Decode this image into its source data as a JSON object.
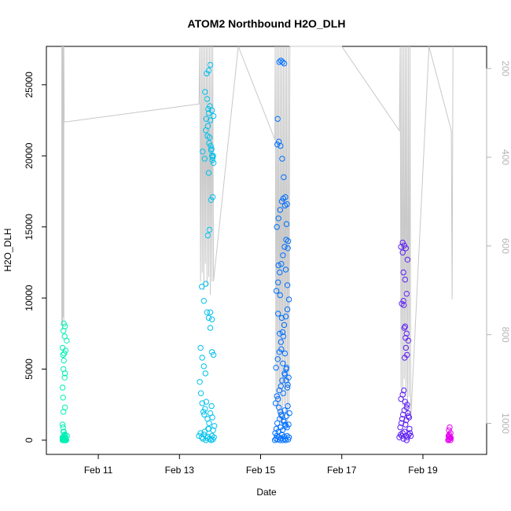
{
  "chart_data": {
    "type": "scatter",
    "title": "ATOM2 Northbound H2O_DLH",
    "xlabel": "Date",
    "ylabel": "H2O_DLH",
    "x_unit": "days in February (day-of-month, fractional)",
    "xlim": [
      9.72,
      20.57
    ],
    "ylim": [
      -1000,
      27700
    ],
    "y2lim": [
      1070,
      150
    ],
    "y2_reversed": true,
    "y2_color": "#b3b3b3",
    "x_ticks": [
      {
        "value": 11,
        "label": "Feb 11"
      },
      {
        "value": 13,
        "label": "Feb 13"
      },
      {
        "value": 15,
        "label": "Feb 15"
      },
      {
        "value": 17,
        "label": "Feb 17"
      },
      {
        "value": 19,
        "label": "Feb 19"
      }
    ],
    "y_ticks": [
      0,
      5000,
      10000,
      15000,
      20000,
      25000
    ],
    "y2_ticks": [
      200,
      400,
      600,
      800,
      1000
    ],
    "grid": false,
    "legend": "none",
    "groups": [
      {
        "color": "#00f0b4",
        "x": [
          10.12,
          10.14,
          10.15,
          10.13,
          10.16,
          10.12,
          10.17,
          10.14,
          10.18,
          10.15,
          10.13,
          10.19,
          10.16,
          10.12,
          10.2,
          10.17,
          10.14,
          10.18,
          10.15,
          10.13,
          10.19,
          10.16,
          10.12,
          10.21,
          10.17,
          10.14,
          10.18,
          10.15,
          10.13,
          10.19,
          10.16,
          10.12,
          10.22,
          10.17,
          10.14,
          10.18,
          10.15,
          10.13,
          10.2,
          10.16,
          10.12,
          10.17,
          10.14,
          10.18,
          10.15,
          10.13,
          10.19,
          10.16,
          10.23
        ],
        "y": [
          0,
          50,
          0,
          80,
          120,
          200,
          0,
          0,
          350,
          600,
          900,
          0,
          150,
          1100,
          0,
          0,
          2000,
          2300,
          300,
          3000,
          0,
          0,
          3700,
          0,
          4400,
          5000,
          4700,
          5600,
          6000,
          6300,
          6100,
          6500,
          7000,
          7300,
          7700,
          8000,
          8200,
          0,
          0,
          0,
          100,
          400,
          600,
          0,
          0,
          0,
          200,
          0,
          300
        ]
      },
      {
        "color": "#00c0ec",
        "x": [
          13.48,
          13.52,
          13.55,
          13.58,
          13.6,
          13.62,
          13.65,
          13.68,
          13.7,
          13.72,
          13.75,
          13.78,
          13.8,
          13.82,
          13.85,
          13.5,
          13.53,
          13.56,
          13.59,
          13.61,
          13.63,
          13.66,
          13.69,
          13.71,
          13.73,
          13.76,
          13.79,
          13.81,
          13.83,
          13.86,
          13.52,
          13.56,
          13.6,
          13.64,
          13.68,
          13.72,
          13.76,
          13.8,
          13.84,
          13.55,
          13.6,
          13.65,
          13.7,
          13.74,
          13.78,
          13.82,
          13.57,
          13.62,
          13.66,
          13.71,
          13.75,
          13.79,
          13.83,
          13.63,
          13.67,
          13.72,
          13.76,
          13.8,
          13.84,
          13.65,
          13.69,
          13.73,
          13.77,
          13.81,
          13.68,
          13.72,
          13.76,
          13.8,
          13.84,
          13.7,
          13.74,
          13.78,
          13.82,
          13.72,
          13.76,
          13.8
        ],
        "y": [
          300,
          500,
          200,
          100,
          400,
          600,
          0,
          150,
          250,
          800,
          100,
          0,
          300,
          50,
          200,
          4100,
          3300,
          2600,
          2000,
          1800,
          2200,
          2700,
          1500,
          800,
          1200,
          1900,
          2400,
          1600,
          700,
          1000,
          6500,
          5800,
          5200,
          4700,
          9000,
          8600,
          7900,
          6200,
          6000,
          10800,
          9800,
          11000,
          14400,
          14800,
          16900,
          17100,
          20300,
          19800,
          22600,
          23300,
          23500,
          20500,
          20000,
          24500,
          25800,
          26000,
          26400,
          23200,
          22800,
          21800,
          21400,
          20900,
          20700,
          19700,
          24000,
          23000,
          22500,
          20000,
          19500,
          22100,
          21300,
          20400,
          19900,
          18800,
          9000,
          8500
        ]
      },
      {
        "color": "#0070ff",
        "x": [
          15.35,
          15.38,
          15.4,
          15.42,
          15.45,
          15.48,
          15.5,
          15.52,
          15.55,
          15.58,
          15.6,
          15.62,
          15.65,
          15.68,
          15.7,
          15.36,
          15.39,
          15.41,
          15.44,
          15.47,
          15.49,
          15.51,
          15.54,
          15.57,
          15.59,
          15.61,
          15.64,
          15.67,
          15.69,
          15.71,
          15.37,
          15.4,
          15.43,
          15.46,
          15.5,
          15.53,
          15.56,
          15.6,
          15.63,
          15.66,
          15.69,
          15.38,
          15.42,
          15.46,
          15.5,
          15.54,
          15.58,
          15.62,
          15.66,
          15.7,
          15.39,
          15.43,
          15.47,
          15.51,
          15.55,
          15.59,
          15.63,
          15.67,
          15.4,
          15.44,
          15.48,
          15.52,
          15.56,
          15.6,
          15.64,
          15.68,
          15.41,
          15.45,
          15.49,
          15.53,
          15.57,
          15.61,
          15.65,
          15.42,
          15.46,
          15.5,
          15.54,
          15.58,
          15.62,
          15.66,
          15.43,
          15.47,
          15.51,
          15.55,
          15.59,
          15.63,
          15.67,
          15.44,
          15.48,
          15.52,
          15.56,
          15.6,
          15.64,
          15.45,
          15.49,
          15.53,
          15.57,
          15.61,
          15.65
        ],
        "y": [
          0,
          100,
          300,
          50,
          200,
          0,
          150,
          400,
          0,
          250,
          100,
          0,
          300,
          50,
          200,
          500,
          800,
          1200,
          600,
          1500,
          900,
          1800,
          700,
          1300,
          2100,
          1000,
          1700,
          2400,
          1100,
          1900,
          2600,
          3100,
          2900,
          3500,
          3800,
          4200,
          3300,
          4600,
          5000,
          3700,
          4400,
          5100,
          5700,
          6200,
          6900,
          7600,
          8100,
          8700,
          9200,
          9900,
          10500,
          11100,
          11800,
          12400,
          13000,
          13600,
          14100,
          13500,
          15000,
          15600,
          16200,
          16800,
          17000,
          16500,
          15200,
          14000,
          20800,
          21000,
          20700,
          19800,
          18500,
          17100,
          16600,
          22600,
          26600,
          26700,
          26600,
          26500,
          12000,
          10900,
          8900,
          7500,
          6400,
          5400,
          4700,
          4200,
          3900,
          12300,
          10200,
          8600,
          7300,
          6100,
          5100,
          2300,
          2000,
          1700,
          1400,
          1100,
          900
        ]
      },
      {
        "color": "#5d1ff4",
        "x": [
          18.42,
          18.45,
          18.48,
          18.5,
          18.52,
          18.55,
          18.58,
          18.6,
          18.62,
          18.65,
          18.68,
          18.7,
          18.44,
          18.47,
          18.49,
          18.51,
          18.54,
          18.57,
          18.59,
          18.61,
          18.64,
          18.67,
          18.46,
          18.5,
          18.53,
          18.56,
          18.6,
          18.63,
          18.66,
          18.48,
          18.52,
          18.56,
          18.6,
          18.64,
          18.5,
          18.54,
          18.58,
          18.62,
          18.52,
          18.56,
          18.6,
          18.54,
          18.58,
          18.46,
          18.5,
          18.53,
          18.57,
          18.61,
          18.55
        ],
        "y": [
          200,
          400,
          300,
          500,
          100,
          600,
          300,
          0,
          200,
          400,
          500,
          300,
          900,
          1200,
          1500,
          1800,
          2100,
          1100,
          1400,
          2500,
          1700,
          800,
          2900,
          3200,
          3500,
          2700,
          2300,
          1900,
          1600,
          9600,
          9800,
          8000,
          7500,
          7000,
          13900,
          13700,
          13500,
          12700,
          11800,
          11300,
          10300,
          7900,
          6500,
          13600,
          13200,
          9500,
          7200,
          6000,
          5800
        ]
      },
      {
        "color": "#e600f0",
        "x": [
          19.62,
          19.64,
          19.66,
          19.68,
          19.63,
          19.65,
          19.67,
          19.69,
          19.64,
          19.66,
          19.68,
          19.65
        ],
        "y": [
          0,
          50,
          100,
          0,
          300,
          400,
          200,
          150,
          700,
          900,
          500,
          250
        ]
      }
    ],
    "profile_line": {
      "color": "#c8c8c8",
      "x": [
        10.1,
        10.1,
        10.11,
        10.12,
        10.12,
        10.13,
        10.14,
        10.15,
        10.15,
        10.16,
        10.17,
        10.18,
        10.19,
        10.2,
        10.21,
        10.22,
        10.23,
        13.48,
        13.5,
        13.52,
        13.54,
        13.56,
        13.58,
        13.6,
        13.62,
        13.64,
        13.66,
        13.68,
        13.7,
        13.72,
        13.74,
        13.76,
        13.78,
        13.8,
        13.82,
        13.84,
        14.45,
        15.35,
        15.36,
        15.38,
        15.4,
        15.42,
        15.44,
        15.46,
        15.48,
        15.5,
        15.52,
        15.54,
        15.56,
        15.58,
        15.6,
        15.62,
        15.64,
        15.66,
        15.68,
        15.7,
        15.72,
        17.0,
        18.42,
        18.44,
        18.46,
        18.48,
        18.5,
        18.52,
        18.54,
        18.56,
        18.58,
        18.6,
        18.62,
        18.64,
        18.66,
        18.68,
        18.7,
        19.15,
        19.7,
        19.72,
        19.74
      ],
      "y2": [
        150,
        780,
        150,
        790,
        150,
        760,
        150,
        770,
        150,
        320,
        320,
        320,
        320,
        320,
        320,
        320,
        320,
        280,
        150,
        680,
        150,
        660,
        150,
        700,
        150,
        640,
        150,
        690,
        150,
        670,
        150,
        710,
        150,
        680,
        150,
        680,
        150,
        360,
        150,
        960,
        150,
        980,
        150,
        1000,
        150,
        990,
        150,
        1010,
        150,
        960,
        150,
        980,
        150,
        1000,
        150,
        970,
        150,
        150,
        340,
        150,
        920,
        150,
        960,
        150,
        900,
        150,
        940,
        150,
        980,
        150,
        940,
        150,
        990,
        150,
        340,
        720,
        150
      ]
    }
  }
}
